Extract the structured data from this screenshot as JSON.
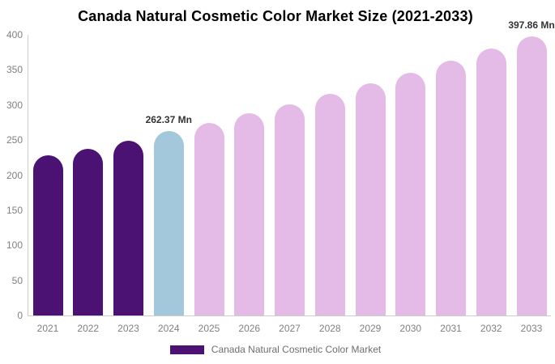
{
  "chart_data": {
    "type": "bar",
    "title": "Canada Natural Cosmetic Color Market Size (2021-2033)",
    "unit": "Mn",
    "categories": [
      "2021",
      "2022",
      "2023",
      "2024",
      "2025",
      "2026",
      "2027",
      "2028",
      "2029",
      "2030",
      "2031",
      "2032",
      "2033"
    ],
    "values": [
      228.5,
      238.0,
      249.5,
      262.37,
      274.8,
      287.8,
      301.4,
      315.7,
      330.7,
      346.3,
      362.7,
      379.9,
      397.86
    ],
    "bar_labels": [
      "",
      "",
      "",
      "262.37 Mn",
      "",
      "",
      "",
      "",
      "",
      "",
      "",
      "",
      "397.86 Mn"
    ],
    "segments": [
      "historical",
      "historical",
      "historical",
      "current",
      "forecast",
      "forecast",
      "forecast",
      "forecast",
      "forecast",
      "forecast",
      "forecast",
      "forecast",
      "forecast"
    ],
    "palette": {
      "historical": "#4B1173",
      "current": "#A3C8DC",
      "forecast": "#E4BAE6"
    },
    "ylim": [
      0,
      400
    ],
    "yticks": [
      0,
      50,
      100,
      150,
      200,
      250,
      300,
      350,
      400
    ],
    "grid": false,
    "xlabel": "",
    "ylabel": "",
    "axis_color": "#cccccc",
    "tick_label_color": "#808080",
    "data_label_color": "#333333",
    "legend": {
      "position": "bottom",
      "label": "Canada Natural Cosmetic Color Market",
      "swatch_color": "#4B1173"
    }
  }
}
